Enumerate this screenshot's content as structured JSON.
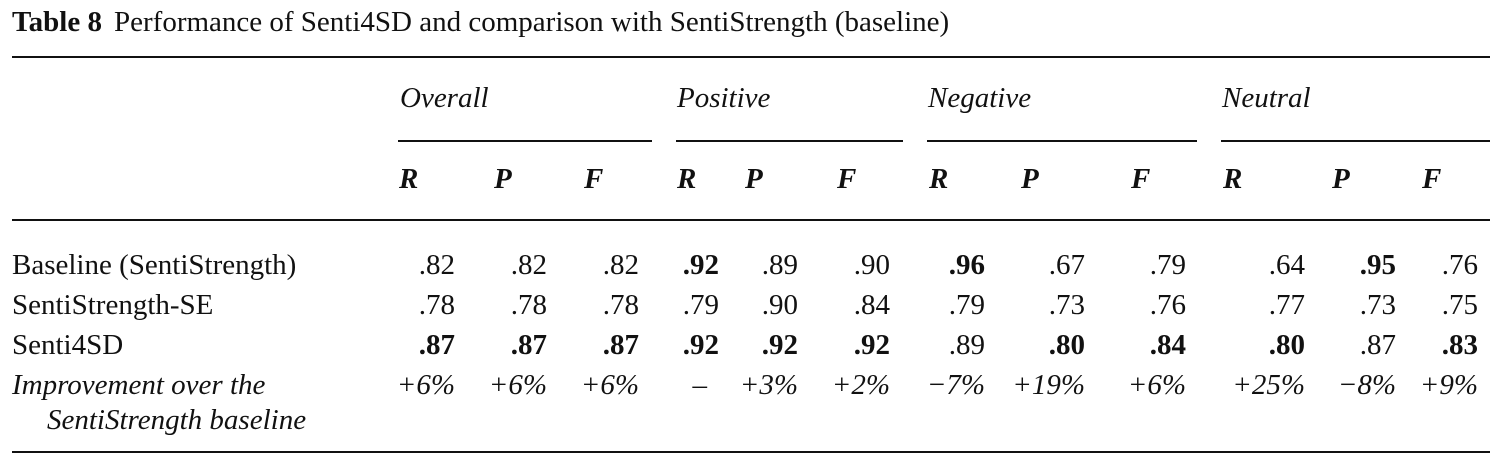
{
  "caption": {
    "label": "Table 8",
    "text": "Performance of Senti4SD and comparison with SentiStrength (baseline)"
  },
  "groups": [
    "Overall",
    "Positive",
    "Negative",
    "Neutral"
  ],
  "subheaders": [
    "R",
    "P",
    "F",
    "R",
    "P",
    "F",
    "R",
    "P",
    "F",
    "R",
    "P",
    "F"
  ],
  "rows": [
    {
      "label": "Baseline (SentiStrength)",
      "values": [
        ".82",
        ".82",
        ".82",
        ".92",
        ".89",
        ".90",
        ".96",
        ".67",
        ".79",
        ".64",
        ".95",
        ".76"
      ],
      "bold": [
        false,
        false,
        false,
        true,
        false,
        false,
        true,
        false,
        false,
        false,
        true,
        false
      ]
    },
    {
      "label": "SentiStrength-SE",
      "values": [
        ".78",
        ".78",
        ".78",
        ".79",
        ".90",
        ".84",
        ".79",
        ".73",
        ".76",
        ".77",
        ".73",
        ".75"
      ],
      "bold": [
        false,
        false,
        false,
        false,
        false,
        false,
        false,
        false,
        false,
        false,
        false,
        false
      ]
    },
    {
      "label": "Senti4SD",
      "values": [
        ".87",
        ".87",
        ".87",
        ".92",
        ".92",
        ".92",
        ".89",
        ".80",
        ".84",
        ".80",
        ".87",
        ".83"
      ],
      "bold": [
        true,
        true,
        true,
        true,
        true,
        true,
        false,
        true,
        true,
        true,
        false,
        true
      ]
    }
  ],
  "improvement": {
    "label_line1": "Improvement over the",
    "label_line2": "SentiStrength baseline",
    "values": [
      "+6%",
      "+6%",
      "+6%",
      "–",
      "+3%",
      "+2%",
      "−7%",
      "+19%",
      "+6%",
      "+25%",
      "−8%",
      "+9%"
    ]
  }
}
